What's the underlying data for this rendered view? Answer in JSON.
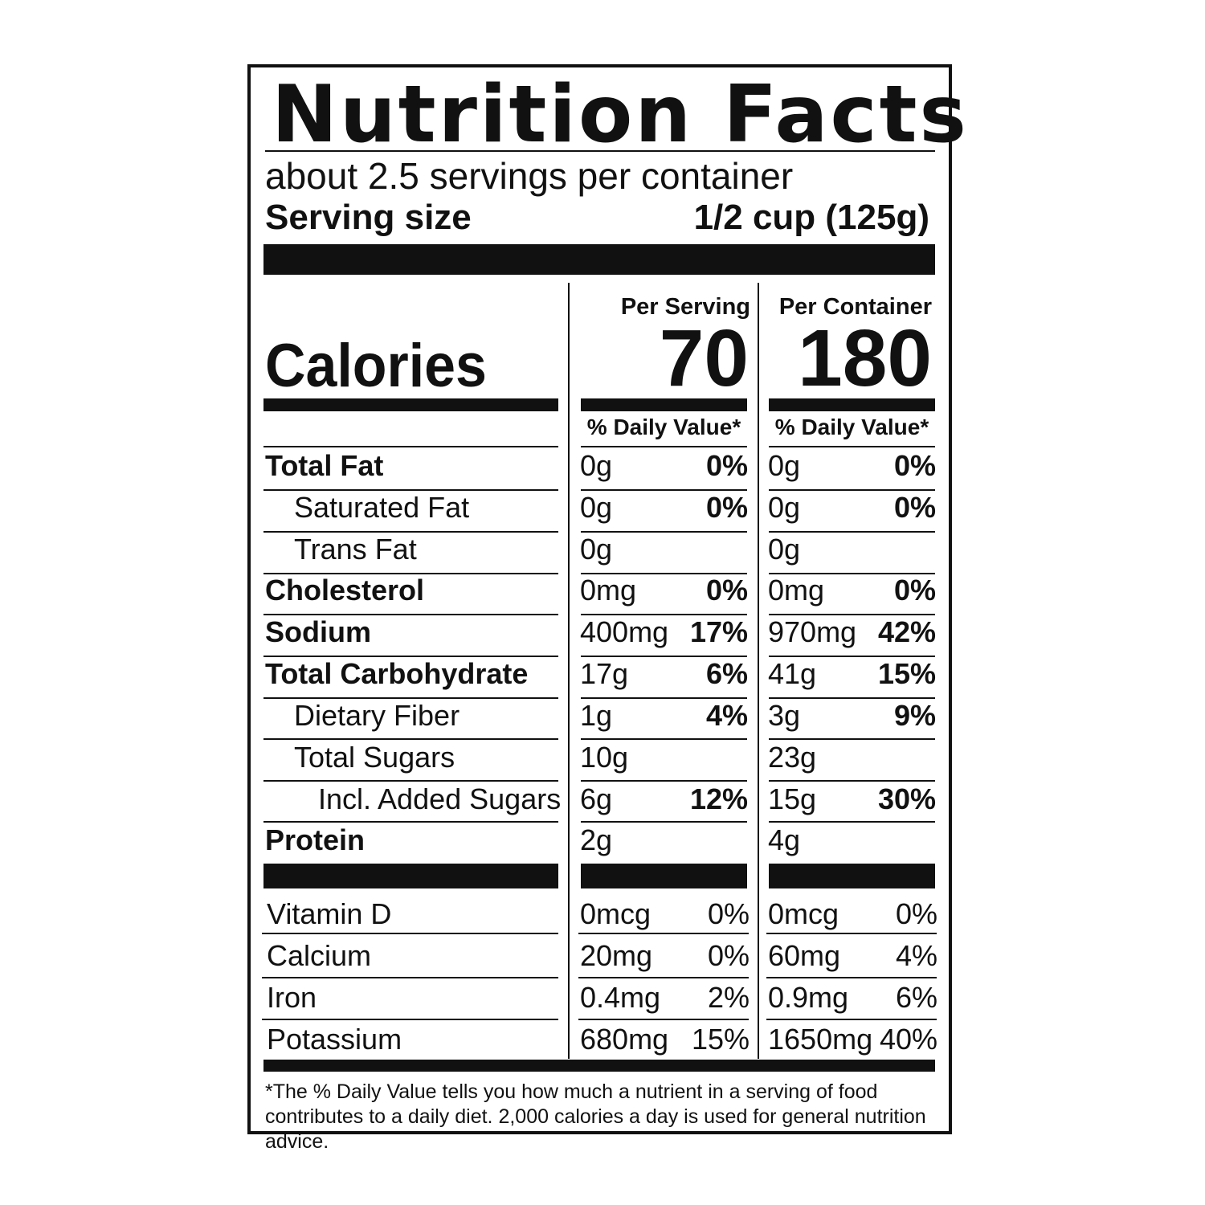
{
  "label": {
    "title": "Nutrition Facts",
    "servings_per_container": "about 2.5 servings per container",
    "serving_size_label": "Serving size",
    "serving_size_value": "1/2 cup (125g)",
    "per_serving_header": "Per Serving",
    "per_container_header": "Per Container",
    "calories_label": "Calories",
    "calories_per_serving": "70",
    "calories_per_container": "180",
    "daily_value_header": "% Daily Value*",
    "nutrients": [
      {
        "name": "Total Fat",
        "serving_amount": "0g",
        "serving_dv": "0%",
        "container_amount": "0g",
        "container_dv": "0%"
      },
      {
        "name": "Saturated Fat",
        "serving_amount": "0g",
        "serving_dv": "0%",
        "container_amount": "0g",
        "container_dv": "0%"
      },
      {
        "name": "Trans Fat",
        "serving_amount": "0g",
        "serving_dv": "",
        "container_amount": "0g",
        "container_dv": ""
      },
      {
        "name": "Cholesterol",
        "serving_amount": "0mg",
        "serving_dv": "0%",
        "container_amount": "0mg",
        "container_dv": "0%"
      },
      {
        "name": "Sodium",
        "serving_amount": "400mg",
        "serving_dv": "17%",
        "container_amount": "970mg",
        "container_dv": "42%"
      },
      {
        "name": "Total Carbohydrate",
        "serving_amount": "17g",
        "serving_dv": "6%",
        "container_amount": "41g",
        "container_dv": "15%"
      },
      {
        "name": "Dietary Fiber",
        "serving_amount": "1g",
        "serving_dv": "4%",
        "container_amount": "3g",
        "container_dv": "9%"
      },
      {
        "name": "Total Sugars",
        "serving_amount": "10g",
        "serving_dv": "",
        "container_amount": "23g",
        "container_dv": ""
      },
      {
        "name": "Incl. Added Sugars",
        "serving_amount": "6g",
        "serving_dv": "12%",
        "container_amount": "15g",
        "container_dv": "30%"
      },
      {
        "name": "Protein",
        "serving_amount": "2g",
        "serving_dv": "",
        "container_amount": "4g",
        "container_dv": ""
      }
    ],
    "vitamins": [
      {
        "name": "Vitamin D",
        "serving_amount": "0mcg",
        "serving_dv": "0%",
        "container_amount": "0mcg",
        "container_dv": "0%"
      },
      {
        "name": "Calcium",
        "serving_amount": "20mg",
        "serving_dv": "0%",
        "container_amount": "60mg",
        "container_dv": "4%"
      },
      {
        "name": "Iron",
        "serving_amount": "0.4mg",
        "serving_dv": "2%",
        "container_amount": "0.9mg",
        "container_dv": "6%"
      },
      {
        "name": "Potassium",
        "serving_amount": "680mg",
        "serving_dv": "15%",
        "container_amount": "1650mg",
        "container_dv": "40%"
      }
    ],
    "footnote": "*The % Daily Value tells you how much a nutrient in a serving of food contributes to a daily diet. 2,000 calories a day is used for general nutrition advice."
  }
}
